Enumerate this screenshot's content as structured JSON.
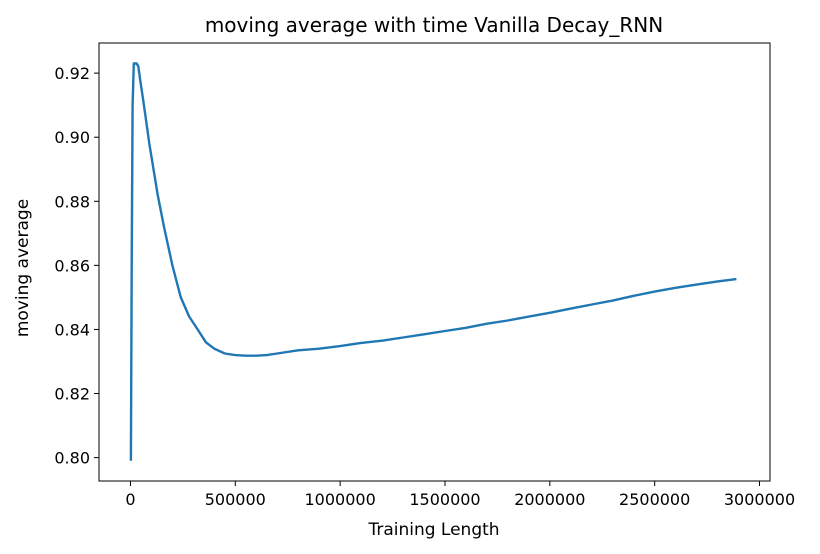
{
  "chart_data": {
    "type": "line",
    "title": "moving average with time Vanilla Decay_RNN",
    "xlabel": "Training Length",
    "ylabel": "moving average",
    "xlim": [
      -150000,
      3050000
    ],
    "ylim": [
      0.7927,
      0.9294
    ],
    "grid": false,
    "x_ticks": [
      0,
      500000,
      1000000,
      1500000,
      2000000,
      2500000,
      3000000
    ],
    "x_tick_labels": [
      "0",
      "500000",
      "1000000",
      "1500000",
      "2000000",
      "2500000",
      "3000000"
    ],
    "y_ticks": [
      0.8,
      0.82,
      0.84,
      0.86,
      0.88,
      0.9,
      0.92
    ],
    "y_tick_labels": [
      "0.80",
      "0.82",
      "0.84",
      "0.86",
      "0.88",
      "0.90",
      "0.92"
    ],
    "series": [
      {
        "color": "#1f77b4",
        "x": [
          2000,
          6000,
          10000,
          16000,
          22000,
          30000,
          38000,
          46000,
          60000,
          75000,
          90000,
          110000,
          130000,
          160000,
          200000,
          240000,
          280000,
          320000,
          360000,
          400000,
          450000,
          500000,
          550000,
          600000,
          650000,
          700000,
          800000,
          900000,
          1000000,
          1100000,
          1200000,
          1300000,
          1400000,
          1500000,
          1600000,
          1700000,
          1800000,
          1900000,
          2000000,
          2100000,
          2200000,
          2300000,
          2400000,
          2500000,
          2600000,
          2700000,
          2800000,
          2890000
        ],
        "y": [
          0.799,
          0.86,
          0.91,
          0.923,
          0.923,
          0.923,
          0.922,
          0.918,
          0.912,
          0.905,
          0.898,
          0.89,
          0.882,
          0.872,
          0.86,
          0.85,
          0.844,
          0.84,
          0.836,
          0.834,
          0.8325,
          0.832,
          0.8318,
          0.8318,
          0.832,
          0.8325,
          0.8335,
          0.834,
          0.8348,
          0.8358,
          0.8365,
          0.8375,
          0.8385,
          0.8395,
          0.8405,
          0.8418,
          0.8428,
          0.844,
          0.8452,
          0.8465,
          0.8478,
          0.849,
          0.8505,
          0.8518,
          0.853,
          0.854,
          0.855,
          0.8557
        ]
      }
    ]
  }
}
